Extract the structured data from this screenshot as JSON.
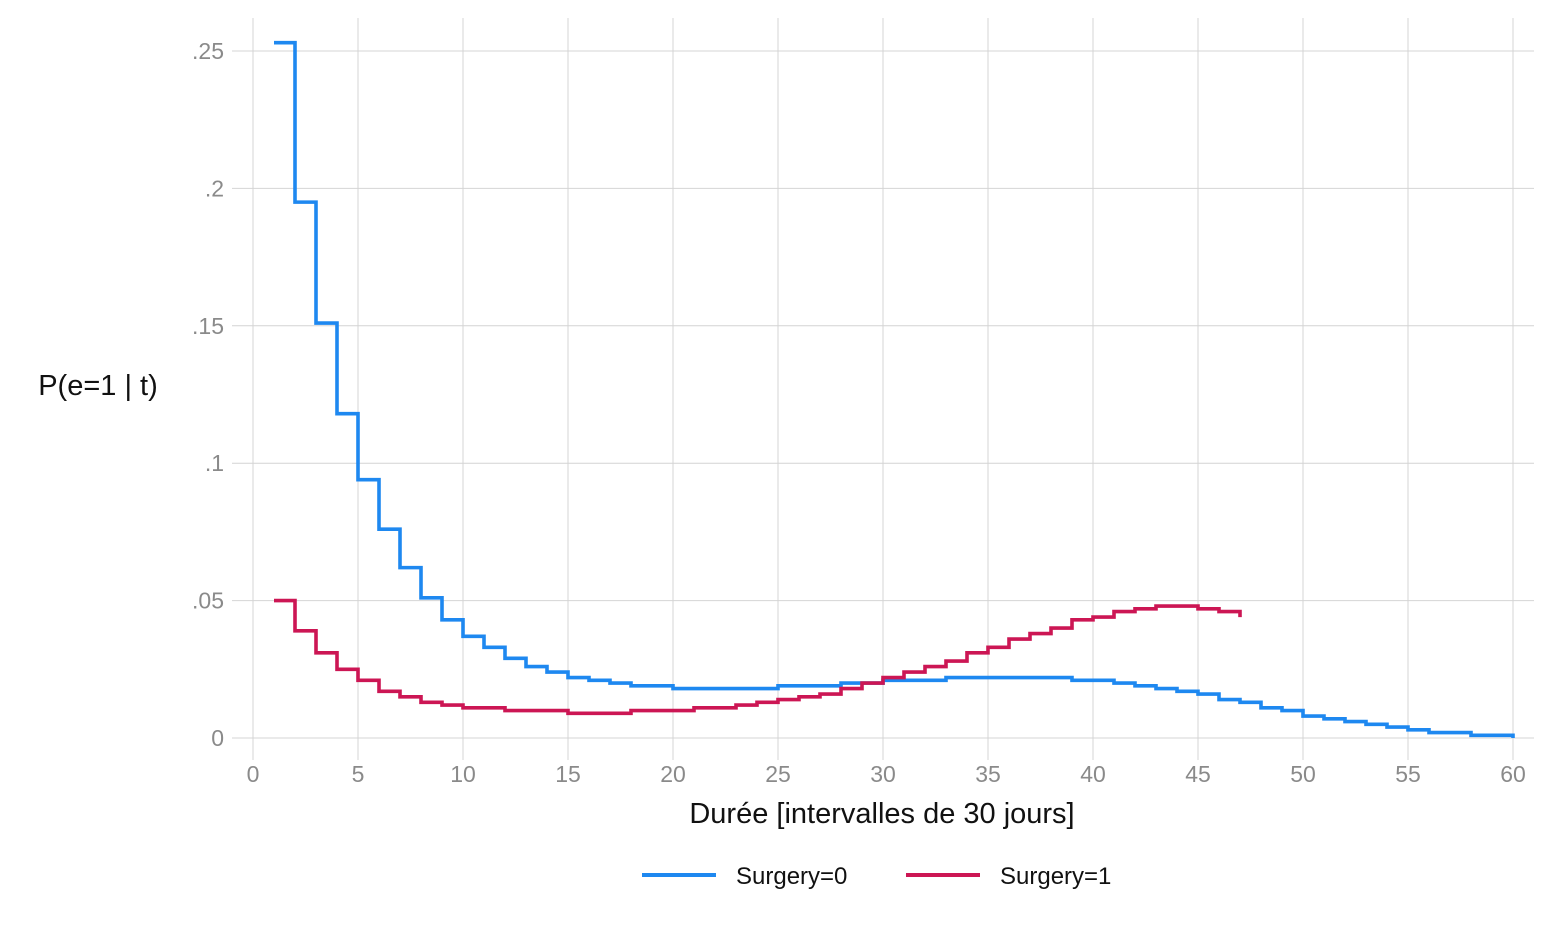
{
  "chart_data": {
    "type": "line",
    "step": true,
    "xlabel": "Durée [intervalles de 30 jours]",
    "ylabel": "P(e=1 | t)",
    "xlim": [
      -1,
      61
    ],
    "ylim": [
      -0.008,
      0.262
    ],
    "xticks": [
      0,
      5,
      10,
      15,
      20,
      25,
      30,
      35,
      40,
      45,
      50,
      55,
      60
    ],
    "xtick_labels": [
      "0",
      "5",
      "10",
      "15",
      "20",
      "25",
      "30",
      "35",
      "40",
      "45",
      "50",
      "55",
      "60"
    ],
    "yticks": [
      0,
      0.05,
      0.1,
      0.15,
      0.2,
      0.25
    ],
    "ytick_labels": [
      "0",
      ".05",
      ".1",
      ".15",
      ".2",
      ".25"
    ],
    "grid": true,
    "legend_position": "bottom",
    "series": [
      {
        "name": "Surgery=0",
        "color": "#1e88f0",
        "x": [
          1,
          2,
          3,
          4,
          5,
          6,
          7,
          8,
          9,
          10,
          11,
          12,
          13,
          14,
          15,
          16,
          17,
          18,
          19,
          20,
          21,
          22,
          23,
          24,
          25,
          26,
          27,
          28,
          29,
          30,
          31,
          32,
          33,
          34,
          35,
          36,
          37,
          38,
          39,
          40,
          41,
          42,
          43,
          44,
          45,
          46,
          47,
          48,
          49,
          50,
          51,
          52,
          53,
          54,
          55,
          56,
          57,
          58,
          59,
          60
        ],
        "y": [
          0.253,
          0.195,
          0.151,
          0.118,
          0.094,
          0.076,
          0.062,
          0.051,
          0.043,
          0.037,
          0.033,
          0.029,
          0.026,
          0.024,
          0.022,
          0.021,
          0.02,
          0.019,
          0.019,
          0.018,
          0.018,
          0.018,
          0.018,
          0.018,
          0.019,
          0.019,
          0.019,
          0.02,
          0.02,
          0.021,
          0.021,
          0.021,
          0.022,
          0.022,
          0.022,
          0.022,
          0.022,
          0.022,
          0.021,
          0.021,
          0.02,
          0.019,
          0.018,
          0.017,
          0.016,
          0.014,
          0.013,
          0.011,
          0.01,
          0.008,
          0.007,
          0.006,
          0.005,
          0.004,
          0.003,
          0.002,
          0.002,
          0.001,
          0.001,
          0.0
        ]
      },
      {
        "name": "Surgery=1",
        "color": "#cc1654",
        "x": [
          1,
          2,
          3,
          4,
          5,
          6,
          7,
          8,
          9,
          10,
          11,
          12,
          13,
          14,
          15,
          16,
          17,
          18,
          19,
          20,
          21,
          22,
          23,
          24,
          25,
          26,
          27,
          28,
          29,
          30,
          31,
          32,
          33,
          34,
          35,
          36,
          37,
          38,
          39,
          40,
          41,
          42,
          43,
          44,
          45,
          46,
          47
        ],
        "y": [
          0.05,
          0.039,
          0.031,
          0.025,
          0.021,
          0.017,
          0.015,
          0.013,
          0.012,
          0.011,
          0.011,
          0.01,
          0.01,
          0.01,
          0.009,
          0.009,
          0.009,
          0.01,
          0.01,
          0.01,
          0.011,
          0.011,
          0.012,
          0.013,
          0.014,
          0.015,
          0.016,
          0.018,
          0.02,
          0.022,
          0.024,
          0.026,
          0.028,
          0.031,
          0.033,
          0.036,
          0.038,
          0.04,
          0.043,
          0.044,
          0.046,
          0.047,
          0.048,
          0.048,
          0.047,
          0.046,
          0.044
        ]
      }
    ]
  }
}
